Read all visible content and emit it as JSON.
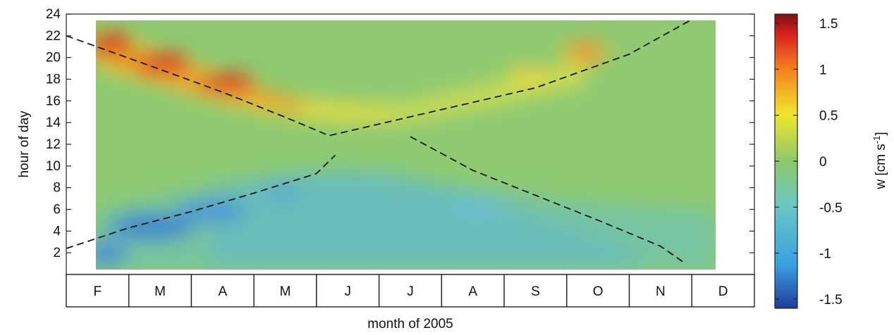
{
  "chart_data": {
    "type": "heatmap",
    "title": "",
    "xlabel": "month of 2005",
    "ylabel": "hour of day",
    "colorbar_label": "w [cm s",
    "colorbar_label_sup": "-1",
    "colorbar_label_end": "]",
    "x_categories": [
      "F",
      "M",
      "A",
      "M",
      "J",
      "J",
      "A",
      "S",
      "O",
      "N",
      "D"
    ],
    "yticks": [
      2,
      4,
      6,
      8,
      10,
      12,
      14,
      16,
      18,
      20,
      22,
      24
    ],
    "ylim": [
      0,
      24
    ],
    "colorbar_ticks": [
      "1.5",
      "1",
      "0.5",
      "0",
      "-0.5",
      "-1",
      "-1.5"
    ],
    "clim": [
      -1.6,
      1.6
    ],
    "colormap": [
      "#1f3c9c",
      "#3aa1e0",
      "#6cc7c4",
      "#8dc86b",
      "#f2e52d",
      "#f47b20",
      "#d8231f",
      "#7b1010"
    ],
    "grid": false,
    "features": [
      {
        "name": "evening upward maximum",
        "values": [
          [
            0.2,
            21.5,
            1.4
          ],
          [
            1.0,
            19.6,
            1.2
          ],
          [
            2.0,
            17.7,
            1.3
          ],
          [
            3.0,
            16.2,
            0.8
          ],
          [
            4.0,
            15.6,
            0.5
          ]
        ]
      },
      {
        "name": "autumn upward maximum",
        "values": [
          [
            6.6,
            18.5,
            0.6
          ],
          [
            8.2,
            20.5,
            0.9
          ]
        ]
      },
      {
        "name": "morning downward minimum",
        "values": [
          [
            0.0,
            2.4,
            -0.8
          ],
          [
            1.0,
            4.3,
            -1.1
          ],
          [
            2.4,
            5.8,
            -0.8
          ],
          [
            3.3,
            7.6,
            -0.7
          ],
          [
            6.5,
            6.0,
            -0.5
          ]
        ]
      }
    ],
    "dashed_lines": [
      {
        "name": "sunset",
        "points": [
          [
            -0.5,
            22.0
          ],
          [
            1.0,
            18.9
          ],
          [
            2.0,
            16.8
          ],
          [
            3.0,
            14.5
          ],
          [
            3.7,
            12.8
          ],
          [
            7.0,
            17.2
          ],
          [
            8.5,
            20.3
          ],
          [
            9.5,
            23.5
          ]
        ]
      },
      {
        "name": "sunrise",
        "points": [
          [
            -0.5,
            2.4
          ],
          [
            0.5,
            4.3
          ],
          [
            1.5,
            5.8
          ],
          [
            2.5,
            7.5
          ],
          [
            3.5,
            9.3
          ],
          [
            3.8,
            11.0
          ]
        ]
      },
      {
        "name": "sunrise-autumn",
        "points": [
          [
            5.0,
            12.7
          ],
          [
            6.0,
            9.6
          ],
          [
            7.0,
            7.3
          ],
          [
            8.0,
            5.0
          ],
          [
            9.0,
            2.6
          ],
          [
            9.4,
            1.0
          ]
        ]
      }
    ]
  }
}
